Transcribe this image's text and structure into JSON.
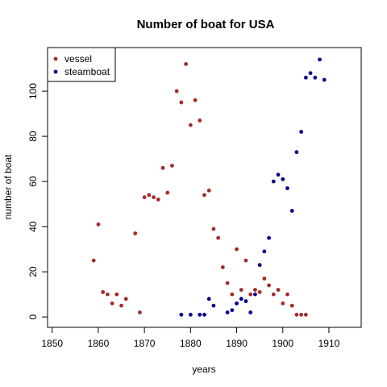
{
  "chart_data": {
    "type": "scatter",
    "title": "Number of boat for USA",
    "xlabel": "years",
    "ylabel": "number of boat",
    "xlim": [
      1849,
      1917
    ],
    "ylim": [
      -4.6,
      119.3
    ],
    "xticks": [
      1850,
      1860,
      1870,
      1880,
      1890,
      1900,
      1910
    ],
    "yticks": [
      0,
      20,
      40,
      60,
      80,
      100
    ],
    "legend_position": "top-left",
    "series": [
      {
        "name": "vessel",
        "color": "#a52a2a",
        "points": [
          [
            1859,
            25
          ],
          [
            1860,
            41
          ],
          [
            1861,
            11
          ],
          [
            1862,
            10
          ],
          [
            1863,
            6
          ],
          [
            1864,
            10
          ],
          [
            1865,
            5
          ],
          [
            1866,
            8
          ],
          [
            1868,
            37
          ],
          [
            1869,
            2
          ],
          [
            1870,
            53
          ],
          [
            1871,
            54
          ],
          [
            1872,
            53
          ],
          [
            1873,
            52
          ],
          [
            1874,
            66
          ],
          [
            1875,
            55
          ],
          [
            1876,
            67
          ],
          [
            1877,
            100
          ],
          [
            1878,
            95
          ],
          [
            1879,
            112
          ],
          [
            1880,
            85
          ],
          [
            1881,
            96
          ],
          [
            1882,
            87
          ],
          [
            1883,
            54
          ],
          [
            1884,
            56
          ],
          [
            1885,
            39
          ],
          [
            1886,
            35
          ],
          [
            1887,
            22
          ],
          [
            1888,
            15
          ],
          [
            1889,
            10
          ],
          [
            1890,
            30
          ],
          [
            1891,
            12
          ],
          [
            1892,
            25
          ],
          [
            1893,
            10
          ],
          [
            1894,
            12
          ],
          [
            1895,
            11
          ],
          [
            1896,
            17
          ],
          [
            1897,
            14
          ],
          [
            1898,
            10
          ],
          [
            1899,
            12
          ],
          [
            1900,
            6
          ],
          [
            1901,
            10
          ],
          [
            1902,
            5
          ],
          [
            1903,
            1
          ],
          [
            1904,
            1
          ],
          [
            1905,
            1
          ]
        ]
      },
      {
        "name": "steamboat",
        "color": "#00008b",
        "points": [
          [
            1878,
            1
          ],
          [
            1880,
            1
          ],
          [
            1882,
            1
          ],
          [
            1883,
            1
          ],
          [
            1884,
            8
          ],
          [
            1885,
            5
          ],
          [
            1888,
            2
          ],
          [
            1889,
            3
          ],
          [
            1890,
            6
          ],
          [
            1891,
            8
          ],
          [
            1892,
            7
          ],
          [
            1893,
            2
          ],
          [
            1894,
            10
          ],
          [
            1895,
            23
          ],
          [
            1896,
            29
          ],
          [
            1897,
            35
          ],
          [
            1898,
            60
          ],
          [
            1899,
            63
          ],
          [
            1900,
            61
          ],
          [
            1901,
            57
          ],
          [
            1902,
            47
          ],
          [
            1903,
            73
          ],
          [
            1904,
            82
          ],
          [
            1905,
            106
          ],
          [
            1906,
            108
          ],
          [
            1907,
            106
          ],
          [
            1908,
            114
          ],
          [
            1909,
            105
          ]
        ]
      }
    ]
  }
}
